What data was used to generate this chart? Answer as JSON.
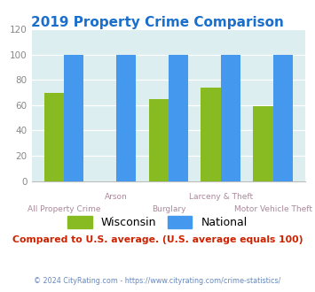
{
  "title": "2019 Property Crime Comparison",
  "title_color": "#1a6fcc",
  "categories": [
    "All Property Crime",
    "Arson",
    "Burglary",
    "Larceny & Theft",
    "Motor Vehicle Theft"
  ],
  "wisconsin_values": [
    70,
    0,
    65,
    74,
    59
  ],
  "national_values": [
    100,
    100,
    100,
    100,
    100
  ],
  "wisconsin_color": "#88bb22",
  "national_color": "#4499ee",
  "plot_bg": "#dceef0",
  "ylim": [
    0,
    120
  ],
  "yticks": [
    0,
    20,
    40,
    60,
    80,
    100,
    120
  ],
  "legend_wisconsin": "Wisconsin",
  "legend_national": "National",
  "footer_text": "© 2024 CityRating.com - https://www.cityrating.com/crime-statistics/",
  "subtitle_text": "Compared to U.S. average. (U.S. average equals 100)",
  "subtitle_color": "#cc2200",
  "footer_color": "#6688bb",
  "xlabel_upper_color": "#aa8899",
  "xlabel_lower_color": "#aa8899",
  "bar_width": 0.38,
  "upper_labels": [
    "",
    "Arson",
    "",
    "Larceny & Theft",
    ""
  ],
  "lower_labels": [
    "All Property Crime",
    "",
    "Burglary",
    "",
    "Motor Vehicle Theft"
  ]
}
